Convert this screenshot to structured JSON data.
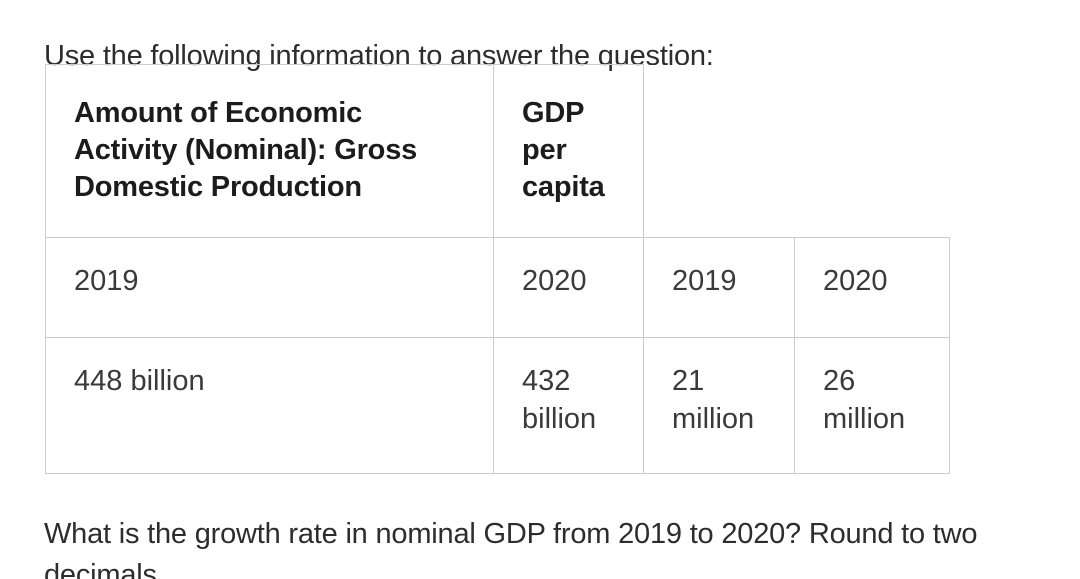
{
  "intro": "Use the following information to answer the question:",
  "table": {
    "headers": [
      "Amount of Economic\nActivity (Nominal): Gross\nDomestic Production",
      "GDP\nper\ncapita"
    ],
    "rows": [
      [
        "2019",
        "2020",
        "2019",
        "2020"
      ],
      [
        "448 billion",
        "432\nbillion",
        "21\nmillion",
        "26\nmillion"
      ]
    ]
  },
  "question": "What is the growth rate in nominal GDP from 2019 to 2020? Round to two decimals.",
  "colors": {
    "border": "#cccccc",
    "header_text": "#1c1c1c",
    "body_text": "#3a3a3a"
  }
}
